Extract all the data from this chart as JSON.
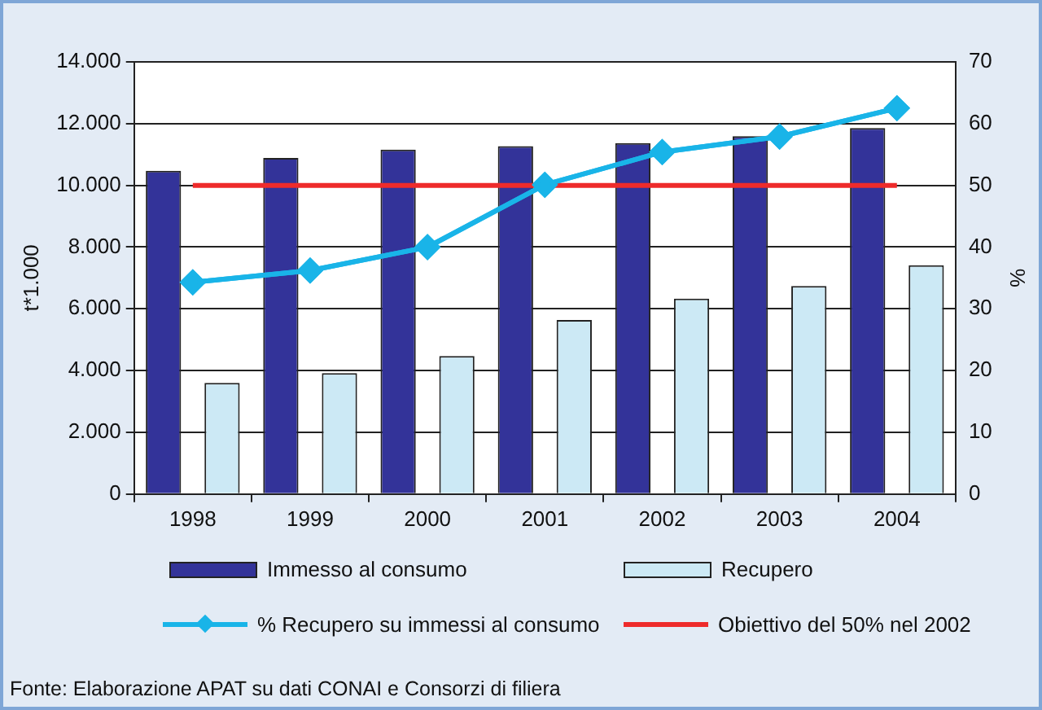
{
  "chart_data": {
    "type": "bar",
    "categories": [
      "1998",
      "1999",
      "2000",
      "2001",
      "2002",
      "2003",
      "2004"
    ],
    "series": [
      {
        "name": "Immesso al consumo",
        "color": "#333399",
        "values": [
          10470,
          10890,
          11160,
          11270,
          11370,
          11590,
          11860
        ]
      },
      {
        "name": "Recupero",
        "color": "#cce9f5",
        "values": [
          3600,
          3920,
          4470,
          5640,
          6330,
          6740,
          7410
        ]
      },
      {
        "name": "% Recupero su immessi al consumo",
        "type": "line",
        "axis": "y2",
        "color": "#19b4e8",
        "marker": "diamond",
        "values": [
          34.3,
          36.2,
          40.0,
          50.1,
          55.4,
          57.9,
          62.5
        ]
      }
    ],
    "ylabel": "t*1.000",
    "y2label": "%",
    "ylim": [
      0,
      14000
    ],
    "yticks": [
      0,
      {
        "value": 2000,
        "label": "2.000"
      },
      {
        "value": 4000,
        "label": "4.000"
      },
      {
        "value": 6000,
        "label": "6.000"
      },
      {
        "value": 8000,
        "label": "8.000"
      },
      {
        "value": 10000,
        "label": "10.000"
      },
      {
        "value": 12000,
        "label": "12.000"
      },
      {
        "value": 14000,
        "label": "14.000"
      }
    ],
    "y2lim": [
      0,
      70
    ],
    "y2ticks": [
      0,
      10,
      20,
      30,
      40,
      50,
      60,
      70
    ],
    "ref_lines": [
      {
        "axis": "y2",
        "value": 50,
        "label": "Obiettivo del 50% nel 2002",
        "color": "#ee2b2b"
      }
    ],
    "grid": "y",
    "legend": "bottom",
    "annotations": [
      "Fonte: Elaborazione APAT su dati CONAI e Consorzi di filiera"
    ]
  }
}
